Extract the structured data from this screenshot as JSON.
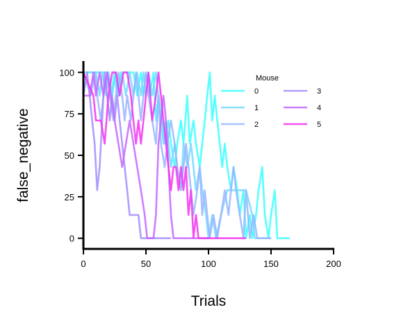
{
  "chart_data": {
    "type": "line",
    "xlabel": "Trials",
    "ylabel": "false_negative",
    "xlim": [
      0,
      200
    ],
    "ylim": [
      -6,
      106
    ],
    "xticks": [
      0,
      50,
      100,
      150,
      200
    ],
    "yticks": [
      0,
      25,
      50,
      75,
      100
    ],
    "legend": {
      "title": "Mouse",
      "placement": "top-right",
      "columns": 2
    },
    "series": [
      {
        "name": "0",
        "color": "#39ffff",
        "x": [
          0,
          20,
          22,
          25,
          27,
          30,
          40,
          43,
          46,
          48,
          50,
          53,
          56,
          58,
          60,
          63,
          65,
          68,
          70,
          73,
          75,
          78,
          80,
          83,
          85,
          88,
          90,
          93,
          95,
          97,
          99,
          101,
          103,
          105,
          107,
          109,
          111,
          113,
          115,
          118,
          120,
          123,
          125,
          128,
          130,
          133,
          135,
          138,
          140,
          143,
          145,
          148,
          150,
          153,
          155,
          158,
          160,
          165
        ],
        "y": [
          100,
          100,
          86,
          100,
          86,
          100,
          100,
          86,
          100,
          86,
          100,
          86,
          100,
          71,
          86,
          71,
          57,
          71,
          57,
          43,
          57,
          71,
          57,
          86,
          57,
          71,
          57,
          43,
          57,
          71,
          86,
          100,
          71,
          86,
          71,
          57,
          43,
          57,
          43,
          29,
          43,
          29,
          14,
          29,
          0,
          14,
          0,
          14,
          29,
          43,
          14,
          0,
          14,
          29,
          0,
          0,
          0,
          0
        ]
      },
      {
        "name": "1",
        "color": "#73d9ff",
        "x": [
          0,
          10,
          13,
          15,
          18,
          20,
          23,
          26,
          28,
          31,
          34,
          37,
          40,
          43,
          46,
          48,
          50,
          52,
          55,
          58,
          60,
          62,
          64,
          66,
          68,
          70,
          73,
          75,
          78,
          80,
          83,
          86,
          88,
          90,
          93,
          95,
          98,
          100,
          103,
          106,
          110,
          115,
          120,
          125,
          130,
          135,
          137,
          140,
          143,
          146,
          150
        ],
        "y": [
          100,
          100,
          86,
          100,
          86,
          100,
          86,
          100,
          86,
          100,
          86,
          100,
          86,
          100,
          86,
          100,
          86,
          100,
          86,
          100,
          86,
          71,
          57,
          71,
          57,
          43,
          57,
          43,
          29,
          57,
          43,
          57,
          43,
          29,
          43,
          29,
          14,
          0,
          14,
          0,
          14,
          29,
          29,
          29,
          29,
          14,
          0,
          0,
          0,
          0,
          0
        ]
      },
      {
        "name": "2",
        "color": "#99b5ff",
        "x": [
          0,
          6,
          9,
          11,
          14,
          16,
          19,
          21,
          24,
          26,
          28,
          31,
          33,
          35,
          38,
          40,
          42,
          44,
          46,
          48,
          50,
          52,
          55,
          58,
          60,
          62,
          65,
          67,
          70,
          73,
          75,
          78,
          80,
          82,
          84,
          86,
          88,
          91,
          93,
          95,
          97,
          99,
          101,
          104,
          107,
          110,
          113,
          116,
          118,
          120,
          122,
          125,
          128,
          130,
          133,
          136,
          139,
          142,
          146,
          150
        ],
        "y": [
          100,
          86,
          100,
          86,
          71,
          86,
          100,
          86,
          71,
          86,
          100,
          86,
          71,
          86,
          71,
          86,
          100,
          86,
          71,
          86,
          100,
          86,
          71,
          57,
          86,
          57,
          43,
          57,
          71,
          57,
          43,
          29,
          43,
          57,
          43,
          29,
          14,
          29,
          43,
          14,
          29,
          14,
          0,
          14,
          0,
          14,
          29,
          14,
          29,
          43,
          29,
          14,
          0,
          29,
          0,
          14,
          0,
          0,
          0,
          0
        ]
      },
      {
        "name": "3",
        "color": "#a38cff",
        "x": [
          0,
          3,
          5,
          7,
          9,
          11,
          13,
          15,
          17,
          19,
          21,
          23,
          25,
          27,
          29,
          31,
          33,
          35,
          37,
          40,
          42,
          44,
          46,
          50,
          55,
          60,
          65,
          70
        ],
        "y": [
          86,
          100,
          86,
          71,
          57,
          29,
          43,
          71,
          100,
          86,
          71,
          86,
          71,
          86,
          71,
          57,
          43,
          29,
          14,
          14,
          14,
          14,
          0,
          0,
          0,
          0,
          0,
          0
        ]
      },
      {
        "name": "4",
        "color": "#c466ff",
        "x": [
          0,
          5,
          8,
          10,
          13,
          16,
          19,
          22,
          25,
          28,
          31,
          34,
          37,
          40,
          43,
          46,
          49,
          51,
          53,
          56,
          58,
          60,
          62,
          64,
          66,
          68,
          70,
          72,
          75,
          80,
          90,
          100
        ],
        "y": [
          86,
          86,
          100,
          86,
          100,
          86,
          100,
          86,
          71,
          57,
          43,
          57,
          71,
          57,
          43,
          29,
          14,
          0,
          0,
          0,
          14,
          57,
          71,
          86,
          71,
          43,
          14,
          0,
          0,
          0,
          0,
          0
        ]
      },
      {
        "name": "5",
        "color": "#f233f2",
        "x": [
          0,
          8,
          10,
          14,
          17,
          20,
          23,
          26,
          29,
          32,
          35,
          38,
          40,
          42,
          44,
          46,
          48,
          50,
          52,
          55,
          58,
          60,
          62,
          64,
          66,
          68,
          70,
          72,
          74,
          76,
          78,
          80,
          82,
          84,
          86,
          88,
          90,
          92,
          95,
          97,
          100,
          105,
          110,
          115,
          120,
          125,
          130
        ],
        "y": [
          100,
          86,
          71,
          71,
          57,
          86,
          100,
          100,
          86,
          100,
          100,
          86,
          71,
          57,
          71,
          57,
          71,
          86,
          100,
          71,
          86,
          100,
          86,
          71,
          57,
          43,
          29,
          43,
          43,
          29,
          43,
          29,
          43,
          14,
          29,
          0,
          14,
          0,
          0,
          0,
          0,
          0,
          0,
          0,
          0,
          0,
          0
        ]
      }
    ]
  }
}
